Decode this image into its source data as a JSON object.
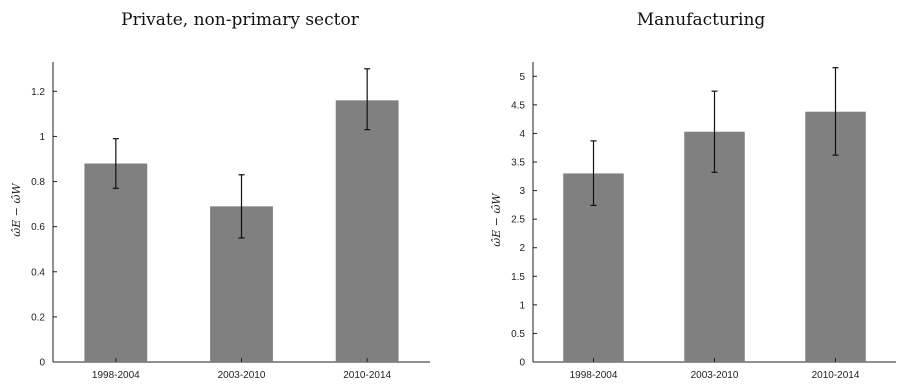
{
  "chart_data": [
    {
      "type": "bar",
      "title": "Private, non-primary sector",
      "xlabel": "",
      "ylabel": "ω̂E − ω̂W",
      "categories": [
        "1998-2004",
        "2003-2010",
        "2010-2014"
      ],
      "values": [
        0.88,
        0.69,
        1.16
      ],
      "error_low": [
        0.77,
        0.55,
        1.03
      ],
      "error_high": [
        0.99,
        0.83,
        1.3
      ],
      "ylim": [
        0,
        1.33
      ],
      "yticks": [
        0,
        0.2,
        0.4,
        0.6,
        0.8,
        1,
        1.2
      ],
      "ytick_labels": [
        "0",
        "0.2",
        "0.4",
        "0.6",
        "0.8",
        "1",
        "1.2"
      ],
      "bar_color": "#808080",
      "grid": false
    },
    {
      "type": "bar",
      "title": "Manufacturing",
      "xlabel": "",
      "ylabel": "ω̂E − ω̂W",
      "categories": [
        "1998-2004",
        "2003-2010",
        "2010-2014"
      ],
      "values": [
        3.3,
        4.03,
        4.38
      ],
      "error_low": [
        2.74,
        3.32,
        3.62
      ],
      "error_high": [
        3.87,
        4.74,
        5.15
      ],
      "ylim": [
        0,
        5.25
      ],
      "yticks": [
        0,
        0.5,
        1,
        1.5,
        2,
        2.5,
        3,
        3.5,
        4,
        4.5,
        5
      ],
      "ytick_labels": [
        "0",
        "0.5",
        "1",
        "1.5",
        "2",
        "2.5",
        "3",
        "3.5",
        "4",
        "4.5",
        "5"
      ],
      "bar_color": "#808080",
      "grid": false
    }
  ]
}
